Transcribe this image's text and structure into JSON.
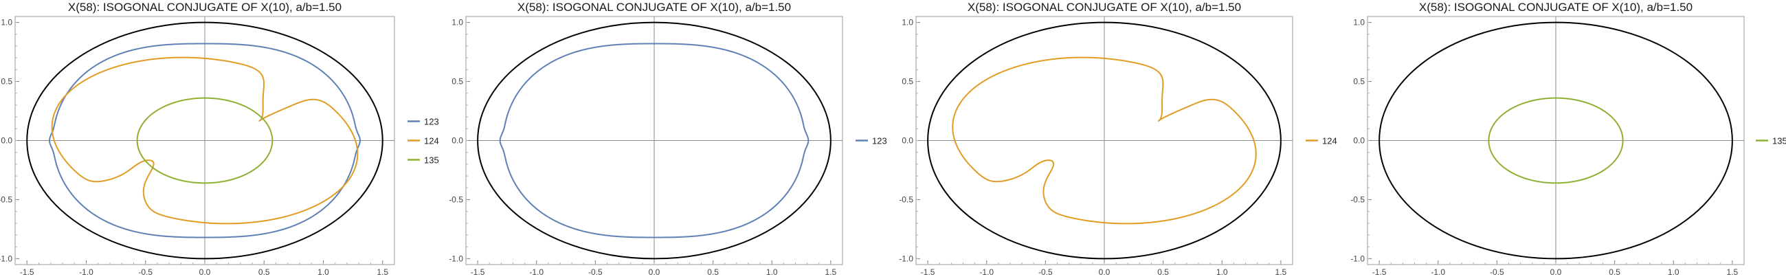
{
  "chart_data": [
    {
      "type": "line",
      "title": "X(58): ISOGONAL CONJUGATE OF X(10), a/b=1.50",
      "xlim": [
        -1.6,
        1.6
      ],
      "ylim": [
        -1.05,
        1.05
      ],
      "xticks": [
        "-1.5",
        "-1.0",
        "-0.5",
        "0.0",
        "0.5",
        "1.0",
        "1.5"
      ],
      "yticks": [
        "-1.0",
        "-0.5",
        "0.0",
        "0.5",
        "1.0"
      ],
      "grid": false,
      "legend_position": "right",
      "reference_ellipse": {
        "a": 1.5,
        "b": 1.0,
        "color": "#000000"
      },
      "series": [
        {
          "name": "123",
          "color": "#5e81b5",
          "curve": "outer"
        },
        {
          "name": "124",
          "color": "#e19c24",
          "curve": "cusped"
        },
        {
          "name": "135",
          "color": "#8fb032",
          "curve": "inner"
        }
      ]
    },
    {
      "type": "line",
      "title": "X(58): ISOGONAL CONJUGATE OF X(10), a/b=1.50",
      "xlim": [
        -1.6,
        1.6
      ],
      "ylim": [
        -1.05,
        1.05
      ],
      "xticks": [
        "-1.5",
        "-1.0",
        "-0.5",
        "0.0",
        "0.5",
        "1.0",
        "1.5"
      ],
      "yticks": [
        "-1.0",
        "-0.5",
        "0.0",
        "0.5",
        "1.0"
      ],
      "grid": false,
      "legend_position": "right",
      "reference_ellipse": {
        "a": 1.5,
        "b": 1.0,
        "color": "#000000"
      },
      "series": [
        {
          "name": "123",
          "color": "#5e81b5",
          "curve": "outer"
        }
      ]
    },
    {
      "type": "line",
      "title": "X(58): ISOGONAL CONJUGATE OF X(10), a/b=1.50",
      "xlim": [
        -1.6,
        1.6
      ],
      "ylim": [
        -1.05,
        1.05
      ],
      "xticks": [
        "-1.5",
        "-1.0",
        "-0.5",
        "0.0",
        "0.5",
        "1.0",
        "1.5"
      ],
      "yticks": [
        "-1.0",
        "-0.5",
        "0.0",
        "0.5",
        "1.0"
      ],
      "grid": false,
      "legend_position": "right",
      "reference_ellipse": {
        "a": 1.5,
        "b": 1.0,
        "color": "#000000"
      },
      "series": [
        {
          "name": "124",
          "color": "#e19c24",
          "curve": "cusped"
        }
      ]
    },
    {
      "type": "line",
      "title": "X(58): ISOGONAL CONJUGATE OF X(10), a/b=1.50",
      "xlim": [
        -1.6,
        1.6
      ],
      "ylim": [
        -1.05,
        1.05
      ],
      "xticks": [
        "-1.5",
        "-1.0",
        "-0.5",
        "0.0",
        "0.5",
        "1.0",
        "1.5"
      ],
      "yticks": [
        "-1.0",
        "-0.5",
        "0.0",
        "0.5",
        "1.0"
      ],
      "grid": false,
      "legend_position": "right",
      "reference_ellipse": {
        "a": 1.5,
        "b": 1.0,
        "color": "#000000"
      },
      "series": [
        {
          "name": "135",
          "color": "#8fb032",
          "curve": "inner"
        }
      ]
    }
  ]
}
